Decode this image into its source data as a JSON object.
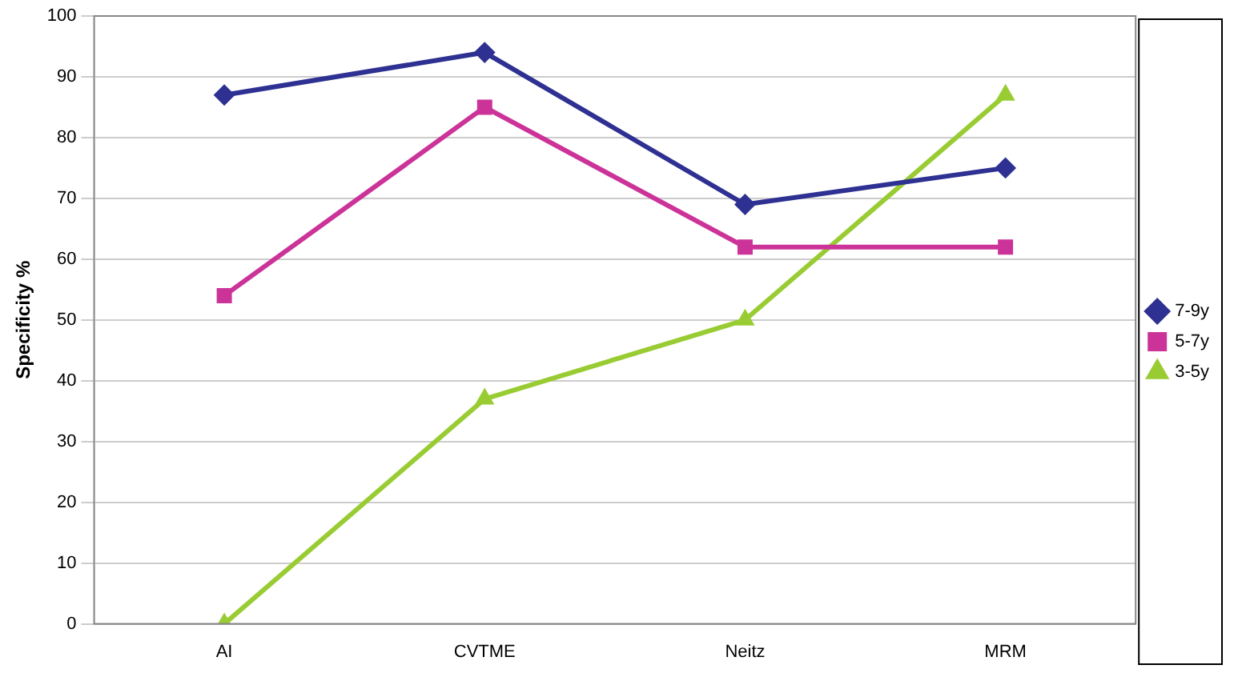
{
  "chart_data": {
    "type": "line",
    "ylabel": "Specificity %",
    "categories": [
      "AI",
      "CVTME",
      "Neitz",
      "MRM"
    ],
    "series": [
      {
        "name": "7-9y",
        "color": "#2e3192",
        "marker": "diamond",
        "values": [
          87,
          94,
          69,
          75
        ]
      },
      {
        "name": "5-7y",
        "color": "#cc3399",
        "marker": "square",
        "values": [
          54,
          85,
          62,
          62
        ]
      },
      {
        "name": "3-5y",
        "color": "#99cc33",
        "marker": "triangle",
        "values": [
          0,
          37,
          50,
          87
        ]
      }
    ],
    "ylim": [
      0,
      100
    ],
    "yticks": [
      0,
      10,
      20,
      30,
      40,
      50,
      60,
      70,
      80,
      90,
      100
    ],
    "grid": "y",
    "legend": "right",
    "line_style": "solid"
  }
}
